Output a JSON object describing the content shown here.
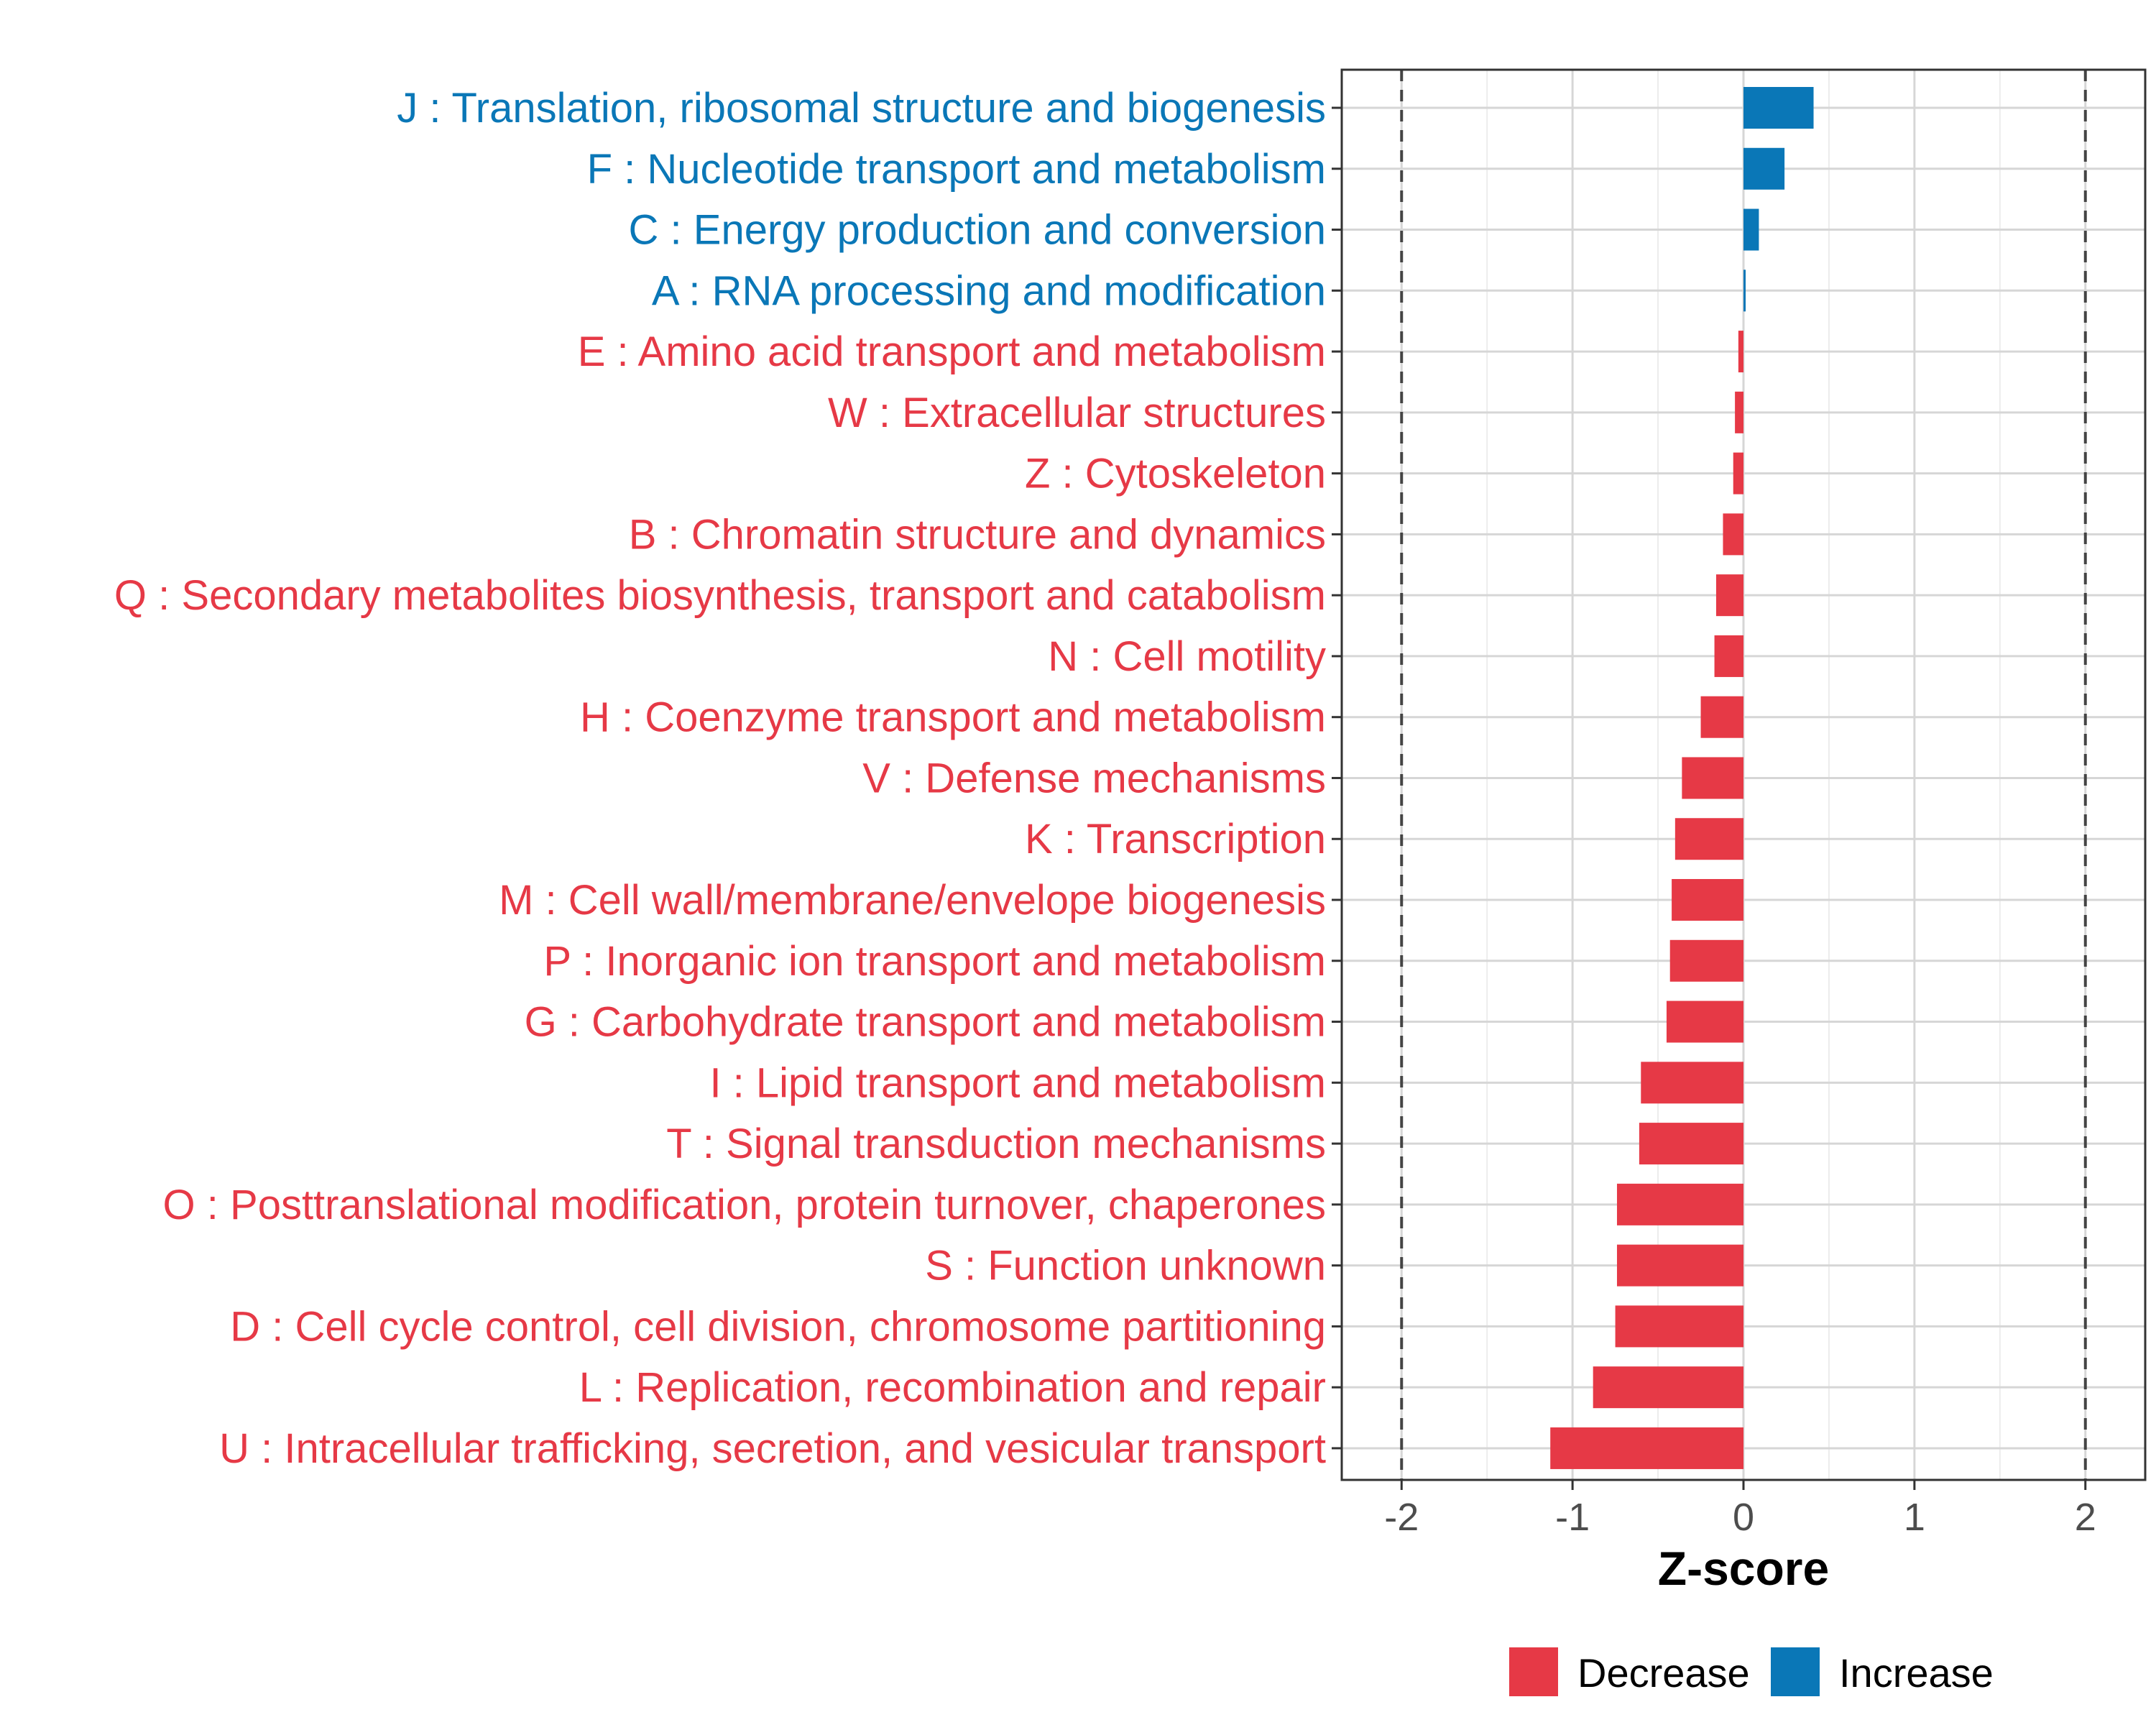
{
  "chart_data": {
    "type": "bar",
    "orientation": "horizontal",
    "xlabel": "Z-score",
    "ylabel": "",
    "xlim": [
      -2.35,
      2.35
    ],
    "xticks": [
      -2,
      -1,
      0,
      1,
      2
    ],
    "tick_labels": [
      "-2",
      "-1",
      "0",
      "1",
      "2"
    ],
    "reference_lines": [
      -2,
      2
    ],
    "grid": true,
    "legend_position": "bottom",
    "legend": [
      {
        "name": "Decrease",
        "color": "#E63946"
      },
      {
        "name": "Increase",
        "color": "#0A77B7"
      }
    ],
    "categories": [
      "J : Translation, ribosomal structure and biogenesis",
      "F : Nucleotide transport and metabolism",
      "C : Energy production and conversion",
      "A : RNA processing and modification",
      "E : Amino acid transport and metabolism",
      "W : Extracellular structures",
      "Z : Cytoskeleton",
      "B : Chromatin structure and dynamics",
      "Q : Secondary metabolites biosynthesis, transport and catabolism",
      "N : Cell motility",
      "H : Coenzyme transport and metabolism",
      "V : Defense mechanisms",
      "K : Transcription",
      "M : Cell wall/membrane/envelope biogenesis",
      "P : Inorganic ion transport and metabolism",
      "G : Carbohydrate transport and metabolism",
      "I : Lipid transport and metabolism",
      "T : Signal transduction mechanisms",
      "O : Posttranslational modification, protein turnover, chaperones",
      "S : Function unknown",
      "D : Cell cycle control, cell division, chromosome partitioning",
      "L : Replication, recombination and repair",
      "U : Intracellular trafficking, secretion, and vesicular transport"
    ],
    "values": [
      0.41,
      0.24,
      0.09,
      0.01,
      -0.03,
      -0.05,
      -0.06,
      -0.12,
      -0.16,
      -0.17,
      -0.25,
      -0.36,
      -0.4,
      -0.42,
      -0.43,
      -0.45,
      -0.6,
      -0.61,
      -0.74,
      -0.74,
      -0.75,
      -0.88,
      -1.13
    ],
    "direction": [
      "Increase",
      "Increase",
      "Increase",
      "Increase",
      "Decrease",
      "Decrease",
      "Decrease",
      "Decrease",
      "Decrease",
      "Decrease",
      "Decrease",
      "Decrease",
      "Decrease",
      "Decrease",
      "Decrease",
      "Decrease",
      "Decrease",
      "Decrease",
      "Decrease",
      "Decrease",
      "Decrease",
      "Decrease",
      "Decrease"
    ]
  }
}
